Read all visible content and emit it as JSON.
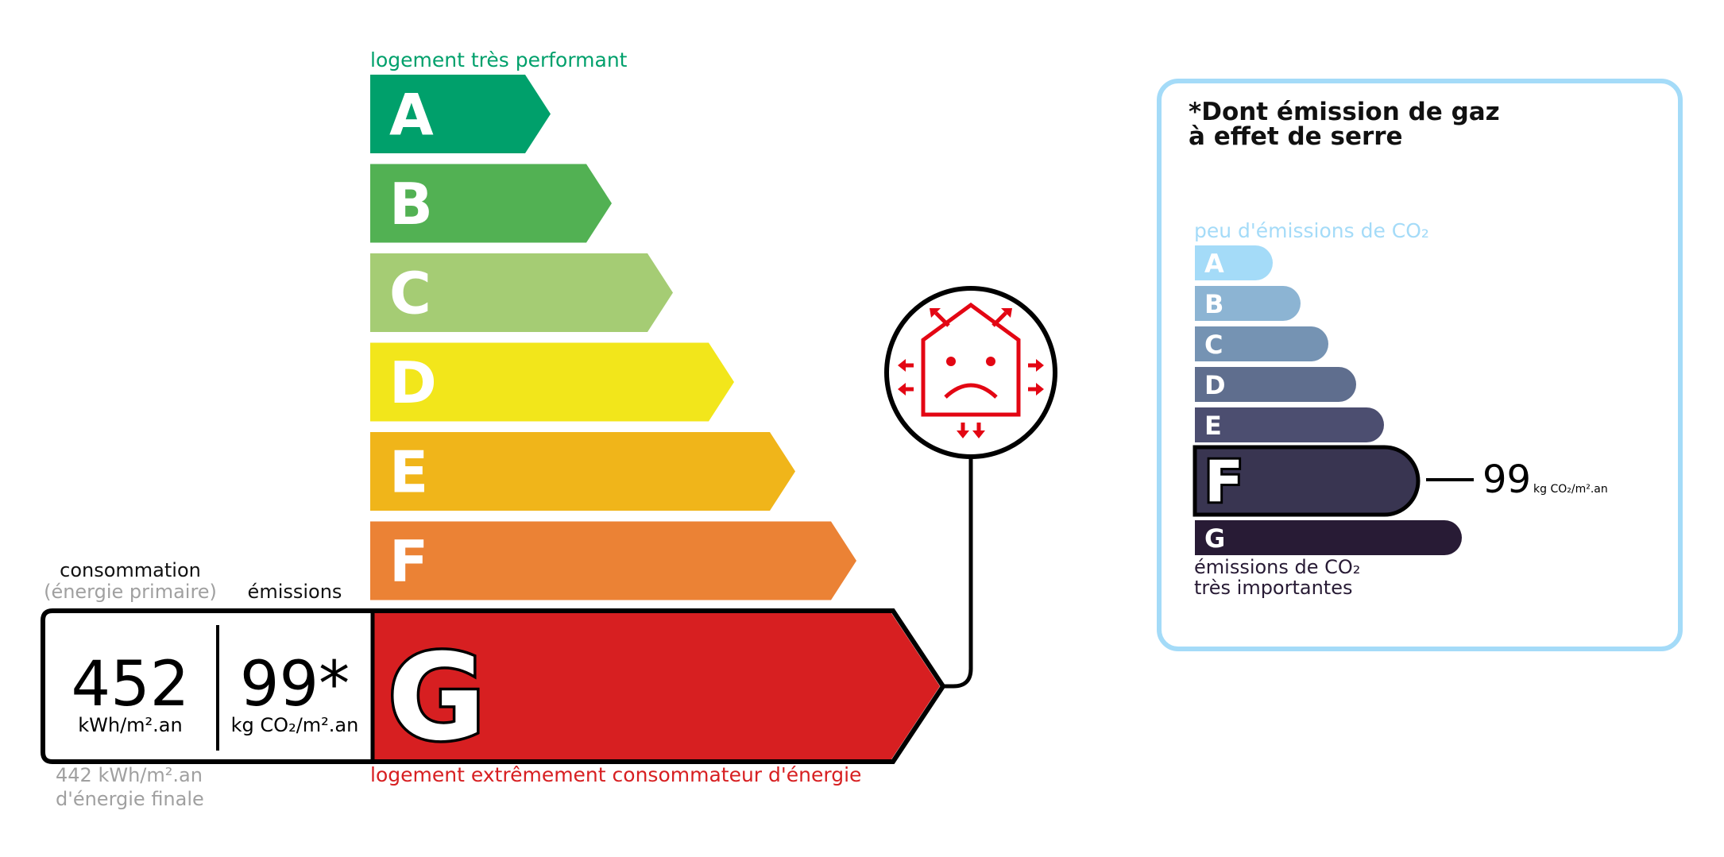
{
  "energy": {
    "top_label": "logement très performant",
    "bottom_label": "logement extrêmement consommateur d'énergie",
    "classes": [
      {
        "letter": "A",
        "color": "#00a06b"
      },
      {
        "letter": "B",
        "color": "#52b153"
      },
      {
        "letter": "C",
        "color": "#a5cc74"
      },
      {
        "letter": "D",
        "color": "#f2e61b"
      },
      {
        "letter": "E",
        "color": "#f0b51a"
      },
      {
        "letter": "F",
        "color": "#eb8235"
      },
      {
        "letter": "G",
        "color": "#d71f21"
      }
    ],
    "current_class": "G",
    "consumption_label": "consommation",
    "consumption_sub": "(énergie primaire)",
    "emissions_label": "émissions",
    "consumption_value": "452",
    "consumption_unit": "kWh/m².an",
    "emissions_value": "99*",
    "emissions_unit": "kg CO₂/m².an",
    "final_energy_value": "442 kWh/m².an",
    "final_energy_label": "d'énergie finale",
    "icon": "unhappy-house-heat-loss-icon"
  },
  "ghg": {
    "title_line1": "*Dont émission de gaz",
    "title_line2": "à effet de serre",
    "top_label": "peu d'émissions de CO₂",
    "bottom_label_line1": "émissions de CO₂",
    "bottom_label_line2": "très importantes",
    "classes": [
      {
        "letter": "A",
        "color": "#a4dbf8"
      },
      {
        "letter": "B",
        "color": "#8cb4d3"
      },
      {
        "letter": "C",
        "color": "#7593b3"
      },
      {
        "letter": "D",
        "color": "#5f6e8e"
      },
      {
        "letter": "E",
        "color": "#4c4e70"
      },
      {
        "letter": "F",
        "color": "#393551"
      },
      {
        "letter": "G",
        "color": "#281b35"
      }
    ],
    "current_class": "F",
    "value": "99",
    "unit": "kg CO₂/m².an",
    "border_color": "#a4dbf8"
  }
}
